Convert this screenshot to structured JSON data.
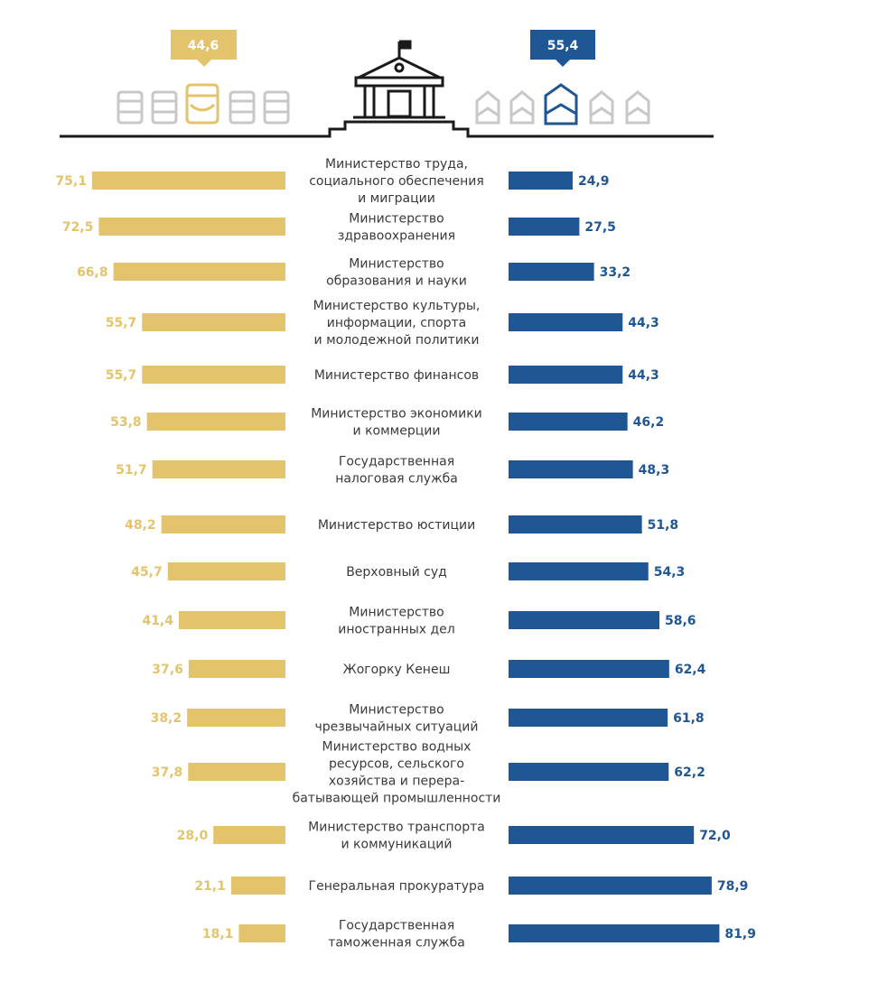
{
  "colors": {
    "left": "#e3c46c",
    "right": "#1f5794",
    "icon_gray": "#c8c8c8",
    "text": "#3a3a3a",
    "ink": "#1a1a1a"
  },
  "header": {
    "left_badge": "44,6",
    "right_badge": "55,4"
  },
  "chart_data": {
    "type": "bar",
    "orientation": "horizontal-diverging",
    "title": "",
    "xlabel": "",
    "ylabel": "",
    "xlim": [
      0,
      100
    ],
    "summary": {
      "left": 44.6,
      "right": 55.4,
      "left_label": "44,6",
      "right_label": "55,4"
    },
    "categories": [
      [
        "Министерство труда,",
        "социального обеспечения",
        "и миграции"
      ],
      [
        "Министерство",
        "здравоохранения"
      ],
      [
        "Министерство",
        "образования и науки"
      ],
      [
        "Министерство культуры,",
        "информации, спорта",
        "и молодежной политики"
      ],
      [
        "Министерство финансов"
      ],
      [
        "Министерство экономики",
        "и коммерции"
      ],
      [
        "Государственная",
        "налоговая служба"
      ],
      [
        "Министерство юстиции"
      ],
      [
        "Верховный суд"
      ],
      [
        "Министерство",
        "иностранных дел"
      ],
      [
        "Жогорку Кенеш"
      ],
      [
        "Министерство",
        "чрезвычайных ситуаций"
      ],
      [
        "Министерство водных",
        "ресурсов, сельского",
        "хозяйства и перера-",
        "батывающей промышленности"
      ],
      [
        "Министерство транспорта",
        "и коммуникаций"
      ],
      [
        "Генеральная прокуратура"
      ],
      [
        "Государственная",
        "таможенная служба"
      ]
    ],
    "series": [
      {
        "name": "left",
        "values": [
          75.1,
          72.5,
          66.8,
          55.7,
          55.7,
          53.8,
          51.7,
          48.2,
          45.7,
          41.4,
          37.6,
          38.2,
          37.8,
          28.0,
          21.1,
          18.1
        ],
        "labels": [
          "75,1",
          "72,5",
          "66,8",
          "55,7",
          "55,7",
          "53,8",
          "51,7",
          "48,2",
          "45,7",
          "41,4",
          "37,6",
          "38,2",
          "37,8",
          "28,0",
          "21,1",
          "18,1"
        ]
      },
      {
        "name": "right",
        "values": [
          24.9,
          27.5,
          33.2,
          44.3,
          44.3,
          46.2,
          48.3,
          51.8,
          54.3,
          58.6,
          62.4,
          61.8,
          62.2,
          72.0,
          78.9,
          81.9
        ],
        "labels": [
          "24,9",
          "27,5",
          "33,2",
          "44,3",
          "44,3",
          "46,2",
          "48,3",
          "51,8",
          "54,3",
          "58,6",
          "62,4",
          "61,8",
          "62,2",
          "72,0",
          "78,9",
          "81,9"
        ]
      }
    ]
  }
}
